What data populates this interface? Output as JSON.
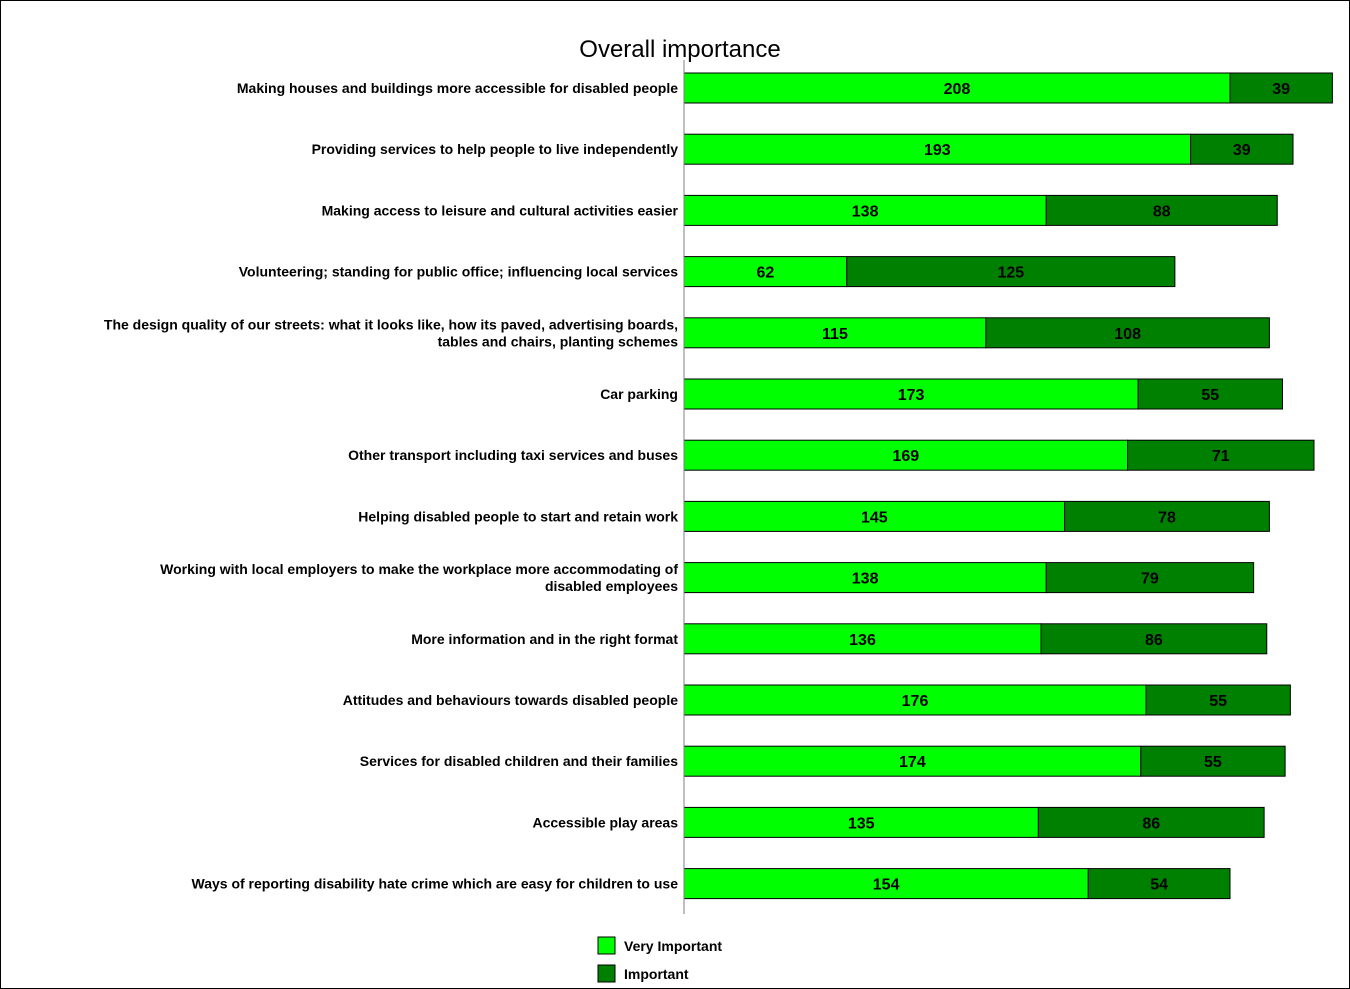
{
  "chart_data": {
    "type": "bar",
    "orientation": "horizontal",
    "stacked": true,
    "title": "Overall importance",
    "categories": [
      [
        "Making houses and buildings more accessible for disabled people"
      ],
      [
        "Providing services to help people to live independently"
      ],
      [
        "Making access to leisure and cultural activities easier"
      ],
      [
        "Volunteering; standing for public office; influencing local services"
      ],
      [
        "The design quality of our streets: what it looks like, how its paved, advertising boards,",
        "tables and chairs, planting schemes"
      ],
      [
        "Car parking"
      ],
      [
        "Other transport including taxi services and buses"
      ],
      [
        "Helping disabled people to start and retain work"
      ],
      [
        "Working with local employers to make the workplace more accommodating of",
        "disabled employees"
      ],
      [
        "More information and in the right format"
      ],
      [
        "Attitudes and behaviours towards disabled people"
      ],
      [
        "Services for disabled children and their families"
      ],
      [
        "Accessible play areas"
      ],
      [
        "Ways of reporting disability hate crime which are easy for children to use"
      ]
    ],
    "series": [
      {
        "name": "Very Important",
        "color": "#00ff00",
        "values": [
          208,
          193,
          138,
          62,
          115,
          173,
          169,
          145,
          138,
          136,
          176,
          174,
          135,
          154
        ]
      },
      {
        "name": "Important",
        "color": "#008000",
        "values": [
          39,
          39,
          88,
          125,
          108,
          55,
          71,
          78,
          79,
          86,
          55,
          55,
          86,
          54
        ]
      }
    ],
    "data_labels": true,
    "gridlines": false,
    "legend_position": "bottom"
  }
}
